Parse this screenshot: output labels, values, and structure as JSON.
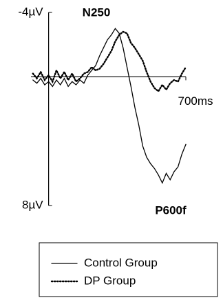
{
  "chart_data": {
    "type": "line",
    "annotations": [
      "N250",
      "P600f"
    ],
    "x": [
      -80,
      -60,
      -40,
      -20,
      0,
      20,
      40,
      60,
      80,
      100,
      120,
      140,
      160,
      180,
      200,
      220,
      240,
      260,
      280,
      300,
      320,
      340,
      360,
      380,
      400,
      420,
      440,
      460,
      480,
      500,
      520,
      540,
      560,
      580,
      600,
      620,
      640,
      660,
      680,
      700
    ],
    "series": [
      {
        "name": "Control Group",
        "color": "#000000",
        "dash": "solid",
        "values": [
          0.2,
          0.4,
          0.1,
          0.5,
          0.3,
          0.6,
          0.2,
          0.5,
          0.1,
          0.6,
          0.3,
          0.5,
          0.2,
          0.4,
          -0.1,
          -0.4,
          -0.7,
          -1.3,
          -1.8,
          -2.3,
          -2.6,
          -3.0,
          -2.7,
          -1.8,
          -0.6,
          0.6,
          1.9,
          3.0,
          4.3,
          5.0,
          5.4,
          5.7,
          6.1,
          6.6,
          6.0,
          6.4,
          5.9,
          5.6,
          4.8,
          4.2
        ]
      },
      {
        "name": "DP Group",
        "color": "#000000",
        "dash": "dotted",
        "values": [
          -0.2,
          0.1,
          -0.3,
          0.2,
          -0.1,
          0.3,
          -0.4,
          0.1,
          -0.3,
          0.2,
          -0.2,
          0.3,
          0.1,
          -0.2,
          -0.3,
          -0.6,
          -0.4,
          -0.5,
          -0.8,
          -1.2,
          -1.6,
          -2.2,
          -2.6,
          -2.8,
          -2.7,
          -2.1,
          -1.8,
          -1.4,
          -1.0,
          -0.3,
          0.3,
          0.7,
          0.9,
          0.5,
          0.8,
          0.4,
          0.2,
          0.3,
          -0.2,
          -0.6
        ]
      }
    ],
    "xlim": [
      -90,
      700
    ],
    "xticks": [
      {
        "value": 700,
        "label": "700ms"
      }
    ],
    "ylim": [
      -4,
      8
    ],
    "y_inverted": true,
    "yticks": [
      {
        "value": -4,
        "label": "-4µV"
      },
      {
        "value": 8,
        "label": "8µV"
      }
    ]
  }
}
